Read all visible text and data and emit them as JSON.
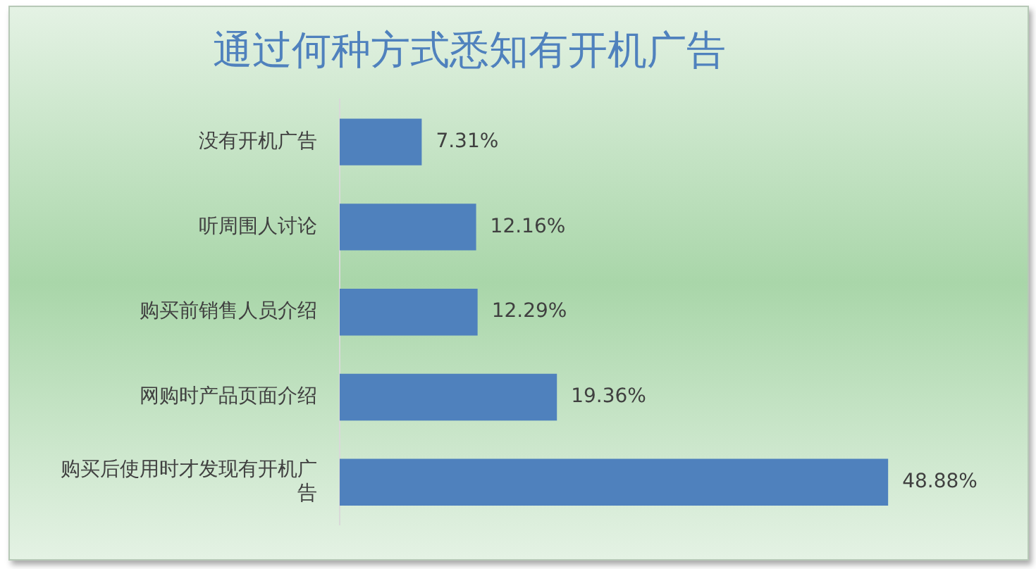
{
  "chart_data": {
    "type": "bar",
    "orientation": "horizontal",
    "title": "通过何种方式悉知有开机广告",
    "categories": [
      "没有开机广告",
      "听周围人讨论",
      "购买前销售人员介绍",
      "网购时产品页面介绍",
      "购买后使用时才发现有开机广告"
    ],
    "values": [
      7.31,
      12.16,
      12.29,
      19.36,
      48.88
    ],
    "value_labels": [
      "7.31%",
      "12.16%",
      "12.29%",
      "19.36%",
      "48.88%"
    ],
    "color": "#4f81bd",
    "legend": false
  }
}
